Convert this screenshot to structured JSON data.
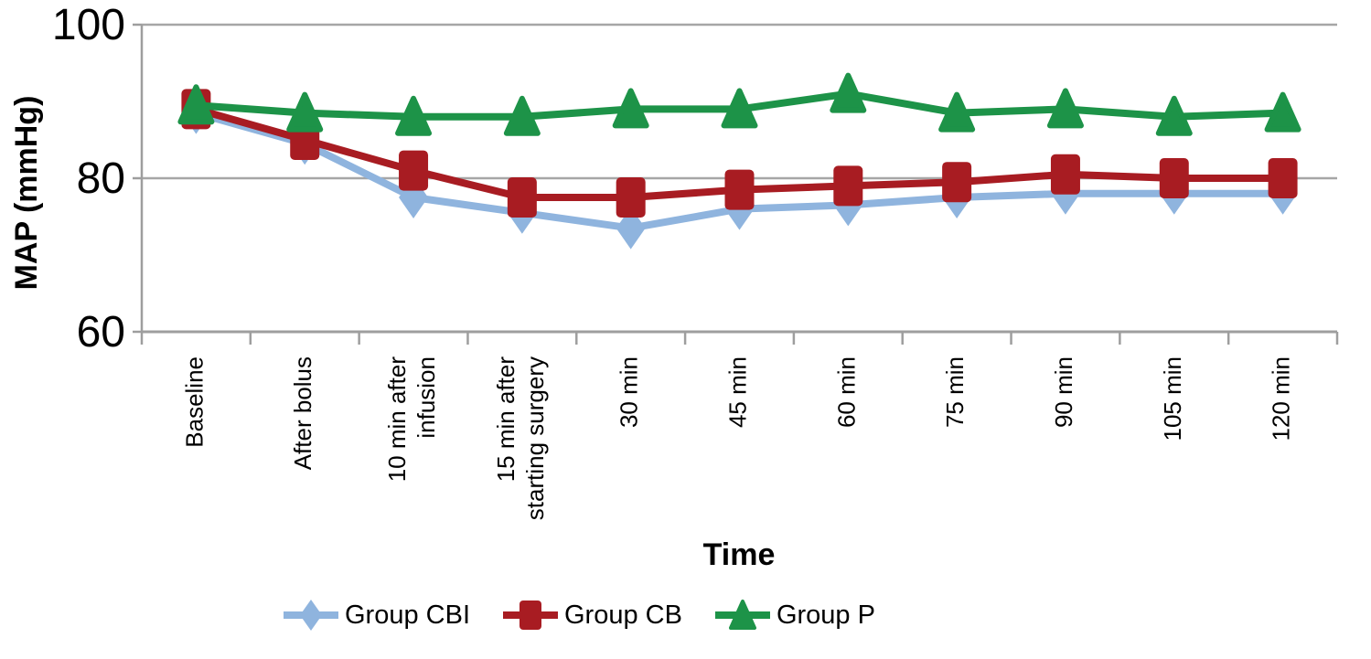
{
  "chart_data": {
    "type": "line",
    "title": "",
    "xlabel": "Time",
    "ylabel": "MAP (mmHg)",
    "ylim": [
      60,
      100
    ],
    "yticks": [
      60,
      80,
      100
    ],
    "grid": "horizontal",
    "legend_position": "bottom",
    "categories": [
      "Baseline",
      "After bolus",
      "10 min after\ninfusion",
      "15 min after\nstarting surgery",
      "30 min",
      "45 min",
      "60 min",
      "75 min",
      "90 min",
      "105 min",
      "120 min"
    ],
    "series": [
      {
        "name": "Group CBI",
        "marker": "diamond",
        "color": "#8FB4DE",
        "values": [
          88.5,
          84.5,
          77.5,
          75.5,
          73.5,
          76,
          76.5,
          77.5,
          78,
          78,
          78
        ]
      },
      {
        "name": "Group CB",
        "marker": "square",
        "color": "#A81C22",
        "values": [
          89,
          85,
          81,
          77.5,
          77.5,
          78.5,
          79,
          79.5,
          80.5,
          80,
          80
        ]
      },
      {
        "name": "Group P",
        "marker": "triangle",
        "color": "#1D9348",
        "values": [
          89.5,
          88.5,
          88,
          88,
          89,
          89,
          91,
          88.5,
          89,
          88,
          88.5
        ]
      }
    ]
  },
  "colors": {
    "gridline": "#A6A6A6",
    "axis": "#9E9E9E",
    "text": "#000000"
  }
}
